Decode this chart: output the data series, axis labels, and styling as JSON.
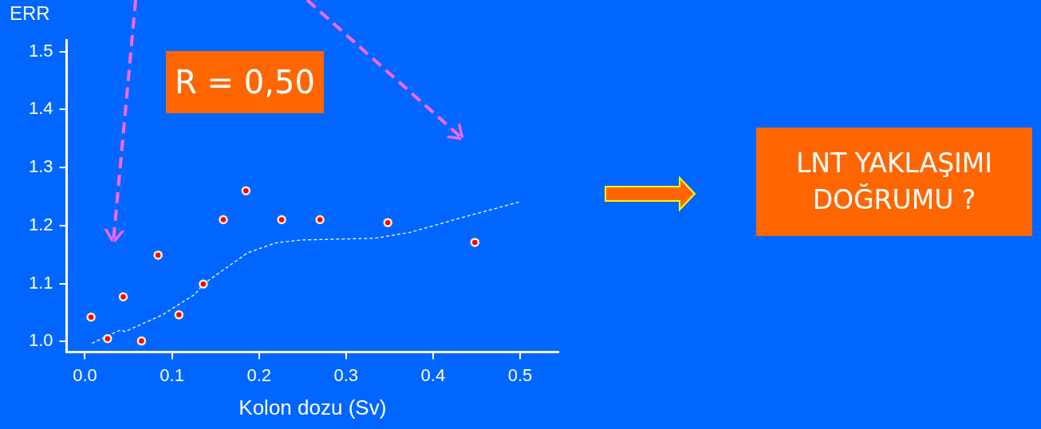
{
  "chart_data": {
    "type": "scatter",
    "xlabel": "Kolon dozu (Sv)",
    "ylabel": "ERR",
    "annotations": [
      "R = 0,50",
      "LNT YAKLAŞIMI DOĞRUMU ?"
    ],
    "xlim": [
      -0.021,
      0.544
    ],
    "xticks": [
      {
        "value": 0,
        "label": "0.0"
      },
      0.1,
      0.2,
      0.3,
      0.4,
      0.5
    ],
    "ylim": [
      0.982,
      1.52
    ],
    "yticks": [
      {
        "value": 1,
        "label": "1.0"
      },
      1.1,
      1.2,
      1.3,
      1.4,
      1.5
    ],
    "grid": false,
    "legend": false,
    "marker": "circle",
    "series": [
      {
        "color": "#ff0000",
        "x": [
          0.007,
          0.026,
          0.044,
          0.065,
          0.084,
          0.108,
          0.136,
          0.159,
          0.185,
          0.226,
          0.27,
          0.348,
          0.448
        ],
        "values": [
          1.042,
          1.005,
          1.077,
          1.001,
          1.149,
          1.046,
          1.099,
          1.21,
          1.26,
          1.21,
          1.21,
          1.205,
          1.171
        ]
      },
      {
        "type": "line",
        "color": "#ffffff",
        "line_style": "dashed",
        "marker": "none",
        "x": [
          0.008,
          0.041,
          0.046,
          0.089,
          0.126,
          0.136,
          0.187,
          0.219,
          0.248,
          0.333,
          0.373,
          0.434,
          0.5
        ],
        "values": [
          0.997,
          1.02,
          1.017,
          1.046,
          1.081,
          1.099,
          1.153,
          1.17,
          1.175,
          1.178,
          1.188,
          1.214,
          1.241
        ]
      }
    ]
  }
}
